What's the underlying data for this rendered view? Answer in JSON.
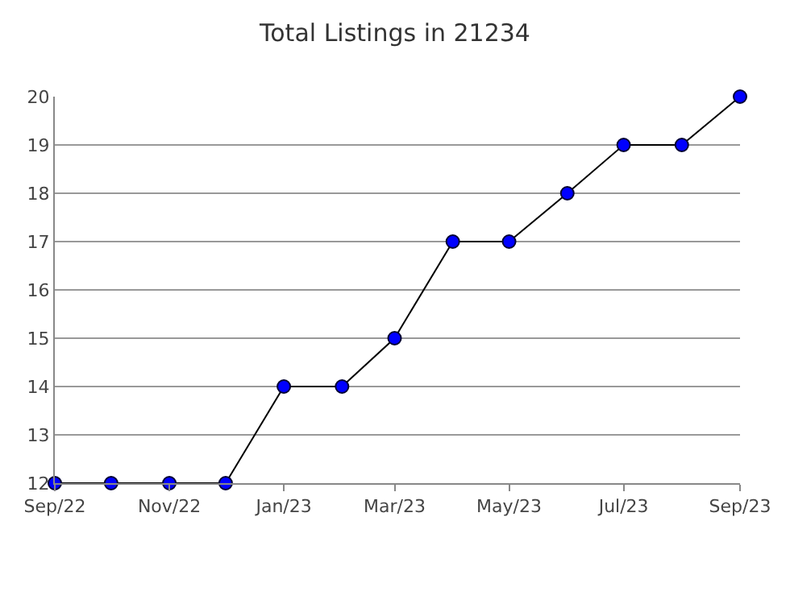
{
  "chart_data": {
    "type": "line",
    "title": "Total Listings in 21234",
    "x": [
      "2022-09-01",
      "2022-10-01",
      "2022-11-01",
      "2022-12-01",
      "2023-01-01",
      "2023-02-01",
      "2023-03-01",
      "2023-04-01",
      "2023-05-01",
      "2023-06-01",
      "2023-07-01",
      "2023-08-01",
      "2023-09-01"
    ],
    "series": [
      {
        "color": "#0000ff",
        "values": [
          12,
          12,
          12,
          12,
          14,
          14,
          15,
          17,
          17,
          18,
          19,
          19,
          20
        ]
      }
    ],
    "xlim": [
      "2022-09-01",
      "2023-09-01"
    ],
    "xticks": [
      {
        "value": "2022-09-01",
        "label": "Sep/22"
      },
      {
        "value": "2022-11-01",
        "label": "Nov/22"
      },
      {
        "value": "2023-01-01",
        "label": "Jan/23"
      },
      {
        "value": "2023-03-01",
        "label": "Mar/23"
      },
      {
        "value": "2023-05-01",
        "label": "May/23"
      },
      {
        "value": "2023-07-01",
        "label": "Jul/23"
      },
      {
        "value": "2023-09-01",
        "label": "Sep/23"
      }
    ],
    "ylim": [
      12,
      20
    ],
    "yticks": [
      12,
      13,
      14,
      15,
      16,
      17,
      18,
      19,
      20
    ],
    "grid": "y",
    "marker": "circle",
    "line_style": "solid"
  }
}
